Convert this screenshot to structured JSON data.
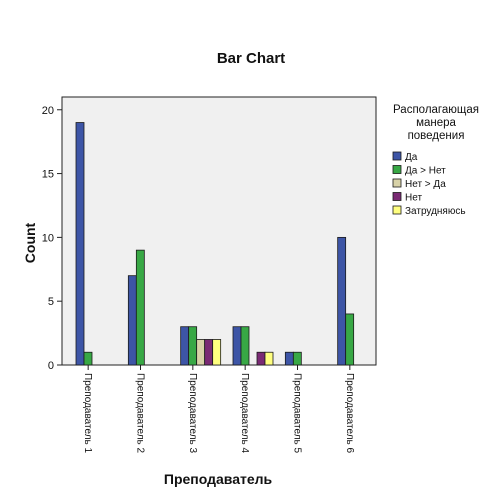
{
  "chart_data": {
    "type": "bar",
    "title": "Bar Chart",
    "xlabel": "Преподаватель",
    "ylabel": "Count",
    "ylim": [
      0,
      21
    ],
    "yticks": [
      0,
      5,
      10,
      15,
      20
    ],
    "grid": false,
    "legend_position": "right",
    "plot_background": "#f0f0f0",
    "categories": [
      "Преподаватель 1",
      "Преподаватель 2",
      "Преподаватель 3",
      "Преподаватель 4",
      "Преподаватель 5",
      "Преподаватель 6"
    ],
    "legend": {
      "title_lines": [
        "Располагающая",
        "манера",
        "поведения"
      ]
    },
    "series": [
      {
        "name": "Да",
        "color": "#3d55a6",
        "values": [
          19,
          7,
          3,
          3,
          1,
          10
        ]
      },
      {
        "name": "Да > Нет",
        "color": "#38a845",
        "values": [
          1,
          9,
          3,
          3,
          1,
          4
        ]
      },
      {
        "name": "Нет > Да",
        "color": "#d8d2a8",
        "values": [
          0,
          0,
          2,
          0,
          0,
          0
        ]
      },
      {
        "name": "Нет",
        "color": "#7a2a74",
        "values": [
          0,
          0,
          2,
          1,
          0,
          0
        ]
      },
      {
        "name": "Затрудняюсь",
        "color": "#ffff80",
        "values": [
          0,
          0,
          2,
          1,
          0,
          0
        ]
      }
    ]
  }
}
